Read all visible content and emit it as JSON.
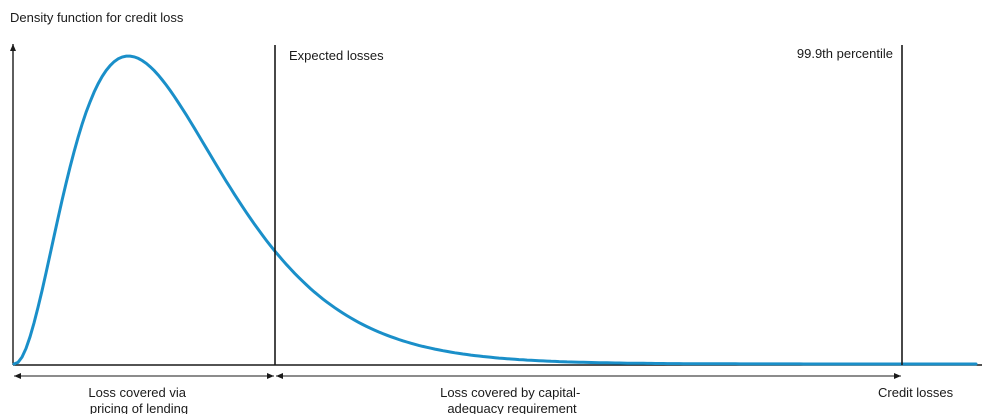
{
  "diagram": {
    "y_axis_label": "Density function for credit loss",
    "x_axis_label": "Credit losses",
    "markers": {
      "expected_losses": "Expected losses",
      "percentile": "99.9th percentile"
    },
    "ranges": {
      "pricing": [
        "Loss covered via",
        "pricing of lending"
      ],
      "capital": [
        "Loss covered by capital-",
        "adequacy requirement"
      ]
    }
  },
  "colors": {
    "curve": "#1a8fc9",
    "ink": "#1a1a1a",
    "background": "#ffffff"
  }
}
